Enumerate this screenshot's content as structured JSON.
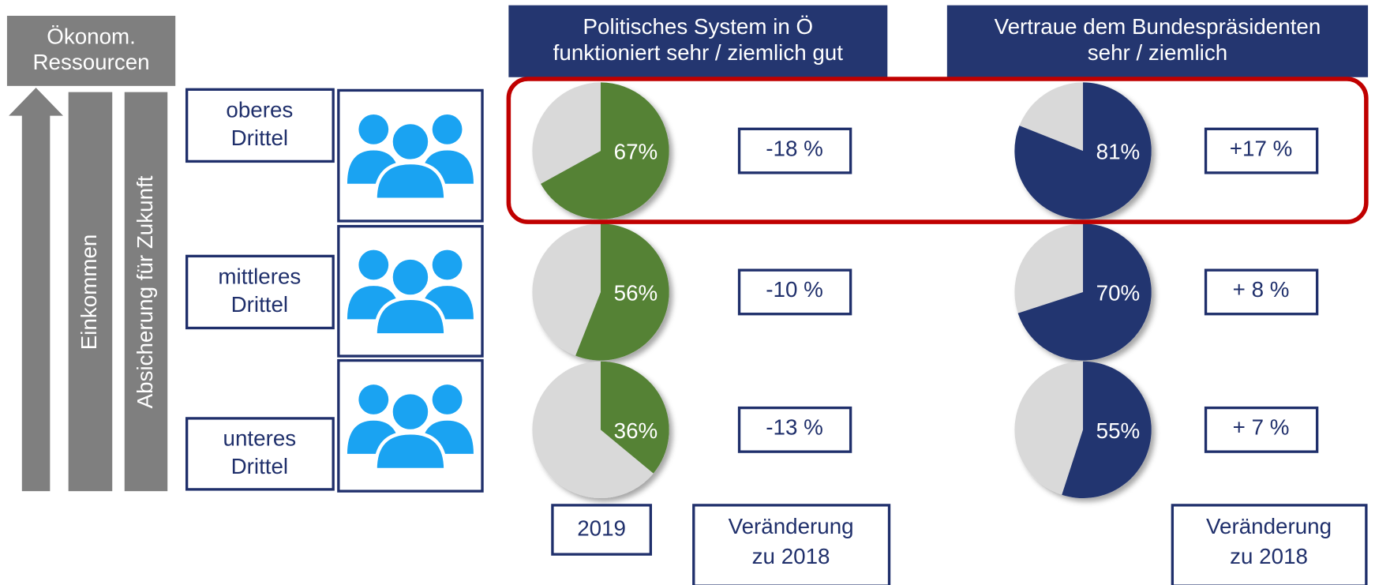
{
  "resources_label": [
    "Ökonom.",
    "Ressourcen"
  ],
  "axis_bars": [
    "Einkommen",
    "Absicherung für Zukunft"
  ],
  "groups": [
    [
      "oberes",
      "Drittel"
    ],
    [
      "mittleres",
      "Drittel"
    ],
    [
      "unteres",
      "Drittel"
    ]
  ],
  "rest_color": "#d9d9d9",
  "columns": [
    {
      "header": [
        "Politisches System in Ö",
        "funktioniert sehr / ziemlich gut"
      ],
      "color": "#548235",
      "values": [
        67,
        56,
        36
      ],
      "value_labels": [
        "67%",
        "56%",
        "36%"
      ],
      "changes": [
        "-18 %",
        "-10 %",
        "-13 %"
      ]
    },
    {
      "header": [
        "Vertraue dem Bundespräsidenten",
        "sehr / ziemlich"
      ],
      "color": "#243670",
      "values": [
        81,
        70,
        55
      ],
      "value_labels": [
        "81%",
        "70%",
        "55%"
      ],
      "changes": [
        "+17 %",
        "+ 8 %",
        "+ 7 %"
      ]
    }
  ],
  "footer": {
    "year": "2019",
    "change_label": [
      "Veränderung",
      "zu 2018"
    ]
  }
}
